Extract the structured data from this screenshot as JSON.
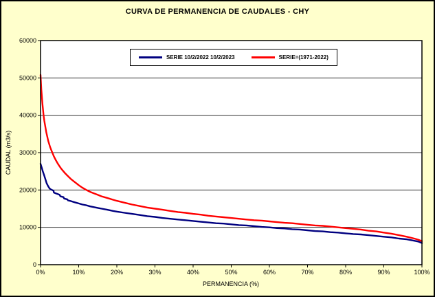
{
  "chart_data": {
    "type": "line",
    "title": "CURVA DE PERMANENCIA DE CAUDALES - CHY",
    "xlabel": "PERMANENCIA (%)",
    "ylabel": "CAUDAL (m3/s)",
    "xlim": [
      0,
      100
    ],
    "ylim": [
      0,
      60000
    ],
    "x_ticks": [
      0,
      10,
      20,
      30,
      40,
      50,
      60,
      70,
      80,
      90,
      100
    ],
    "x_tick_labels": [
      "0%",
      "10%",
      "20%",
      "30%",
      "40%",
      "50%",
      "60%",
      "70%",
      "80%",
      "90%",
      "100%"
    ],
    "y_ticks": [
      0,
      10000,
      20000,
      30000,
      40000,
      50000,
      60000
    ],
    "y_tick_labels": [
      "0",
      "10000",
      "20000",
      "30000",
      "40000",
      "50000",
      "60000"
    ],
    "grid": "horizontal",
    "legend_position": "top-center",
    "colors": {
      "background": "#FFFFCC",
      "plot_background": "#FFFFFF",
      "grid": "#303030",
      "border": "#000000"
    },
    "series": [
      {
        "name": "SERIE 10/2/2022 10/2/2023",
        "color": "#000080",
        "points": [
          [
            0,
            27000
          ],
          [
            0.3,
            26000
          ],
          [
            0.6,
            25000
          ],
          [
            1,
            23800
          ],
          [
            1.3,
            22800
          ],
          [
            1.6,
            21800
          ],
          [
            2,
            21000
          ],
          [
            2.3,
            20500
          ],
          [
            2.6,
            20200
          ],
          [
            3,
            20000
          ],
          [
            3.4,
            19800
          ],
          [
            3.5,
            19300
          ],
          [
            4,
            19100
          ],
          [
            4.5,
            18900
          ],
          [
            5,
            18700
          ],
          [
            5.2,
            18300
          ],
          [
            6,
            18100
          ],
          [
            6.2,
            17700
          ],
          [
            7,
            17500
          ],
          [
            7.2,
            17200
          ],
          [
            8,
            17000
          ],
          [
            9,
            16700
          ],
          [
            10,
            16400
          ],
          [
            11,
            16100
          ],
          [
            12,
            15900
          ],
          [
            13,
            15600
          ],
          [
            14,
            15400
          ],
          [
            15,
            15200
          ],
          [
            16,
            15000
          ],
          [
            17.5,
            14700
          ],
          [
            19,
            14400
          ],
          [
            20,
            14200
          ],
          [
            22,
            13900
          ],
          [
            24,
            13600
          ],
          [
            26,
            13300
          ],
          [
            28,
            13000
          ],
          [
            30,
            12800
          ],
          [
            32,
            12500
          ],
          [
            34,
            12300
          ],
          [
            36,
            12100
          ],
          [
            38,
            11900
          ],
          [
            40,
            11700
          ],
          [
            42,
            11500
          ],
          [
            44,
            11300
          ],
          [
            46,
            11100
          ],
          [
            48,
            11000
          ],
          [
            50,
            10800
          ],
          [
            52,
            10600
          ],
          [
            54,
            10500
          ],
          [
            56,
            10300
          ],
          [
            58,
            10100
          ],
          [
            60,
            10000
          ],
          [
            62,
            9800
          ],
          [
            64,
            9700
          ],
          [
            66,
            9500
          ],
          [
            68,
            9400
          ],
          [
            70,
            9200
          ],
          [
            72,
            9000
          ],
          [
            74,
            8900
          ],
          [
            76,
            8700
          ],
          [
            78,
            8600
          ],
          [
            80,
            8400
          ],
          [
            82,
            8200
          ],
          [
            84,
            8100
          ],
          [
            86,
            7900
          ],
          [
            88,
            7700
          ],
          [
            90,
            7500
          ],
          [
            92,
            7300
          ],
          [
            94,
            7000
          ],
          [
            96,
            6800
          ],
          [
            98,
            6400
          ],
          [
            99,
            6200
          ],
          [
            100,
            5800
          ]
        ]
      },
      {
        "name": "SERIE=(1971-2022)",
        "color": "#FF0000",
        "points": [
          [
            0,
            50800
          ],
          [
            0.2,
            47000
          ],
          [
            0.5,
            43000
          ],
          [
            0.8,
            40000
          ],
          [
            1,
            38500
          ],
          [
            1.5,
            35500
          ],
          [
            2,
            33200
          ],
          [
            2.5,
            31500
          ],
          [
            3,
            30200
          ],
          [
            3.5,
            29000
          ],
          [
            4,
            28000
          ],
          [
            4.5,
            27100
          ],
          [
            5,
            26300
          ],
          [
            5.5,
            25600
          ],
          [
            6,
            25000
          ],
          [
            6.5,
            24400
          ],
          [
            7,
            23900
          ],
          [
            7.5,
            23400
          ],
          [
            8,
            22900
          ],
          [
            8.5,
            22500
          ],
          [
            9,
            22100
          ],
          [
            9.5,
            21700
          ],
          [
            10,
            21300
          ],
          [
            11,
            20600
          ],
          [
            12,
            20000
          ],
          [
            13,
            19500
          ],
          [
            14,
            19100
          ],
          [
            15,
            18700
          ],
          [
            16,
            18300
          ],
          [
            17,
            18000
          ],
          [
            18,
            17700
          ],
          [
            19,
            17400
          ],
          [
            20,
            17100
          ],
          [
            22,
            16600
          ],
          [
            24,
            16100
          ],
          [
            26,
            15700
          ],
          [
            28,
            15300
          ],
          [
            30,
            15000
          ],
          [
            32,
            14700
          ],
          [
            34,
            14400
          ],
          [
            36,
            14100
          ],
          [
            38,
            13900
          ],
          [
            40,
            13600
          ],
          [
            42,
            13400
          ],
          [
            44,
            13100
          ],
          [
            46,
            12900
          ],
          [
            48,
            12700
          ],
          [
            50,
            12500
          ],
          [
            52,
            12300
          ],
          [
            54,
            12100
          ],
          [
            56,
            11900
          ],
          [
            58,
            11800
          ],
          [
            60,
            11600
          ],
          [
            62,
            11400
          ],
          [
            64,
            11200
          ],
          [
            66,
            11100
          ],
          [
            68,
            10900
          ],
          [
            70,
            10700
          ],
          [
            72,
            10500
          ],
          [
            74,
            10400
          ],
          [
            76,
            10200
          ],
          [
            78,
            10000
          ],
          [
            80,
            9800
          ],
          [
            82,
            9600
          ],
          [
            84,
            9400
          ],
          [
            86,
            9100
          ],
          [
            88,
            8900
          ],
          [
            90,
            8600
          ],
          [
            92,
            8300
          ],
          [
            94,
            7900
          ],
          [
            96,
            7500
          ],
          [
            98,
            7000
          ],
          [
            99,
            6700
          ],
          [
            100,
            6300
          ]
        ]
      }
    ]
  }
}
